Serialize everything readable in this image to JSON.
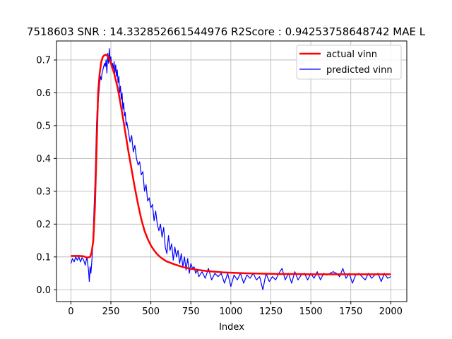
{
  "chart_data": {
    "type": "line",
    "title": "7518603  SNR : 14.332852661544976 R2Score : 0.94253758648742 MAE L",
    "xlabel": "Index",
    "ylabel": "",
    "xlim": [
      -90,
      2100
    ],
    "ylim": [
      -0.036,
      0.758
    ],
    "xticks": [
      0,
      250,
      500,
      750,
      1000,
      1250,
      1500,
      1750,
      2000
    ],
    "yticks": [
      0.0,
      0.1,
      0.2,
      0.3,
      0.4,
      0.5,
      0.6,
      0.7
    ],
    "grid": true,
    "legend_position": "top-right",
    "series": [
      {
        "name": "actual vinn",
        "color": "#ff0000",
        "x": [
          0,
          50,
          80,
          100,
          120,
          130,
          140,
          150,
          160,
          170,
          180,
          190,
          200,
          210,
          220,
          230,
          240,
          250,
          260,
          270,
          280,
          290,
          300,
          320,
          340,
          360,
          380,
          400,
          420,
          440,
          460,
          480,
          500,
          520,
          540,
          560,
          580,
          600,
          650,
          700,
          750,
          800,
          850,
          900,
          950,
          1000,
          1100,
          1200,
          1300,
          1400,
          1500,
          1600,
          1700,
          1800,
          1900,
          2000
        ],
        "y": [
          0.103,
          0.103,
          0.102,
          0.098,
          0.1,
          0.115,
          0.15,
          0.25,
          0.42,
          0.6,
          0.66,
          0.695,
          0.71,
          0.715,
          0.716,
          0.712,
          0.703,
          0.69,
          0.675,
          0.66,
          0.64,
          0.62,
          0.595,
          0.54,
          0.48,
          0.42,
          0.365,
          0.31,
          0.26,
          0.215,
          0.18,
          0.155,
          0.135,
          0.12,
          0.108,
          0.099,
          0.092,
          0.086,
          0.077,
          0.069,
          0.064,
          0.06,
          0.057,
          0.055,
          0.053,
          0.052,
          0.05,
          0.049,
          0.048,
          0.048,
          0.047,
          0.047,
          0.047,
          0.047,
          0.047,
          0.047
        ]
      },
      {
        "name": "predicted vinn",
        "color": "#0000ff",
        "x": [
          0,
          10,
          20,
          30,
          40,
          50,
          60,
          70,
          80,
          90,
          100,
          110,
          115,
          120,
          125,
          130,
          135,
          140,
          145,
          150,
          155,
          160,
          165,
          170,
          175,
          180,
          185,
          190,
          195,
          200,
          205,
          210,
          215,
          220,
          225,
          230,
          235,
          240,
          245,
          250,
          255,
          260,
          265,
          270,
          275,
          280,
          285,
          290,
          295,
          300,
          305,
          310,
          315,
          320,
          325,
          330,
          335,
          340,
          345,
          350,
          360,
          370,
          380,
          390,
          400,
          410,
          420,
          430,
          440,
          450,
          460,
          470,
          480,
          490,
          500,
          510,
          520,
          530,
          540,
          550,
          560,
          570,
          580,
          590,
          600,
          610,
          620,
          630,
          640,
          650,
          660,
          670,
          680,
          690,
          700,
          710,
          720,
          730,
          740,
          750,
          760,
          770,
          780,
          790,
          800,
          820,
          840,
          860,
          880,
          900,
          920,
          940,
          960,
          980,
          1000,
          1020,
          1040,
          1060,
          1080,
          1100,
          1120,
          1140,
          1160,
          1180,
          1200,
          1220,
          1240,
          1260,
          1280,
          1300,
          1320,
          1340,
          1360,
          1380,
          1400,
          1420,
          1440,
          1460,
          1480,
          1500,
          1520,
          1540,
          1560,
          1580,
          1600,
          1620,
          1640,
          1660,
          1680,
          1700,
          1720,
          1740,
          1760,
          1780,
          1800,
          1820,
          1840,
          1860,
          1880,
          1900,
          1920,
          1940,
          1960,
          1980,
          2000
        ],
        "y": [
          0.08,
          0.095,
          0.085,
          0.1,
          0.09,
          0.1,
          0.085,
          0.098,
          0.09,
          0.075,
          0.1,
          0.06,
          0.025,
          0.07,
          0.05,
          0.08,
          0.12,
          0.18,
          0.25,
          0.32,
          0.4,
          0.5,
          0.56,
          0.57,
          0.6,
          0.63,
          0.65,
          0.64,
          0.66,
          0.67,
          0.68,
          0.69,
          0.68,
          0.7,
          0.66,
          0.72,
          0.69,
          0.735,
          0.7,
          0.71,
          0.68,
          0.69,
          0.67,
          0.695,
          0.66,
          0.685,
          0.65,
          0.67,
          0.63,
          0.65,
          0.6,
          0.62,
          0.58,
          0.6,
          0.55,
          0.57,
          0.53,
          0.54,
          0.5,
          0.51,
          0.48,
          0.45,
          0.47,
          0.42,
          0.44,
          0.4,
          0.38,
          0.39,
          0.35,
          0.36,
          0.3,
          0.32,
          0.27,
          0.28,
          0.25,
          0.26,
          0.21,
          0.24,
          0.2,
          0.18,
          0.2,
          0.16,
          0.19,
          0.13,
          0.11,
          0.165,
          0.12,
          0.14,
          0.09,
          0.13,
          0.1,
          0.12,
          0.08,
          0.11,
          0.07,
          0.1,
          0.06,
          0.095,
          0.05,
          0.08,
          0.065,
          0.07,
          0.05,
          0.06,
          0.04,
          0.055,
          0.035,
          0.065,
          0.03,
          0.05,
          0.04,
          0.05,
          0.02,
          0.05,
          0.01,
          0.045,
          0.03,
          0.05,
          0.02,
          0.045,
          0.035,
          0.05,
          0.03,
          0.04,
          0.0,
          0.05,
          0.025,
          0.04,
          0.03,
          0.05,
          0.065,
          0.03,
          0.05,
          0.02,
          0.055,
          0.03,
          0.045,
          0.05,
          0.03,
          0.05,
          0.035,
          0.055,
          0.03,
          0.05,
          0.045,
          0.05,
          0.055,
          0.05,
          0.04,
          0.065,
          0.035,
          0.05,
          0.02,
          0.045,
          0.05,
          0.04,
          0.03,
          0.05,
          0.035,
          0.045,
          0.05,
          0.025,
          0.05,
          0.035,
          0.04
        ]
      }
    ]
  }
}
